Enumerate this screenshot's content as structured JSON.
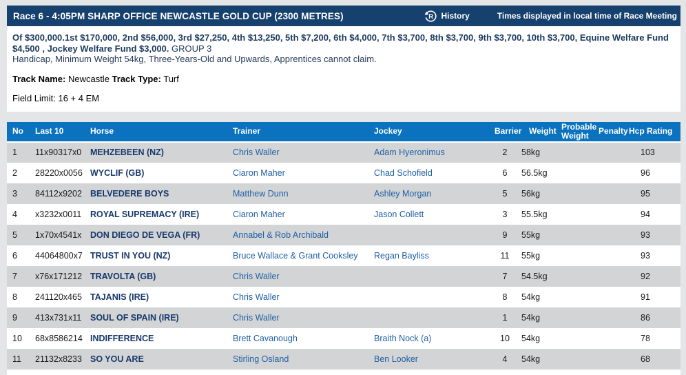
{
  "header": {
    "title": "Race 6 - 4:05PM SHARP OFFICE NEWCASTLE GOLD CUP (2300 METRES)",
    "history_label": "History",
    "history_icon": "history-refresh-R-icon",
    "times_note": "Times displayed in local time of Race Meeting"
  },
  "race_info": {
    "prize_text": "Of $300,000.1st $170,000, 2nd $56,000, 3rd $27,250, 4th $13,250, 5th $7,200, 6th $4,000, 7th $3,700, 8th $3,700, 9th $3,700, 10th $3,700, Equine Welfare Fund $4,500 , Jockey Welfare Fund $3,000.",
    "group_label": "GROUP 3",
    "conditions": "Handicap, Minimum Weight 54kg, Three-Years-Old and Upwards, Apprentices cannot claim.",
    "track_name_label": "Track Name:",
    "track_name": "Newcastle",
    "track_type_label": "Track Type:",
    "track_type": "Turf",
    "field_limit_label": "Field Limit:",
    "field_limit_value": "16 + 4 EM"
  },
  "colors": {
    "title_bar_navy": "#16406e",
    "table_header_blue": "#0a72be",
    "row_alt_gray": "#d2d4d5",
    "horse_link_navy": "#17386b",
    "person_link_blue": "#2060a5"
  },
  "table": {
    "headers": [
      "No",
      "Last 10",
      "Horse",
      "Trainer",
      "Jockey",
      "Barrier",
      "Weight",
      "Probable Weight",
      "Penalty",
      "Hcp Rating"
    ],
    "rows": [
      {
        "no": "1",
        "last10": "11x90317x0",
        "horse": "MEHZEBEEN (NZ)",
        "trainer": "Chris Waller",
        "jockey": "Adam Hyeronimus",
        "barrier": "2",
        "weight": "58kg",
        "probable_weight": "",
        "penalty": "",
        "hcp_rating": "103"
      },
      {
        "no": "2",
        "last10": "28220x0056",
        "horse": "WYCLIF (GB)",
        "trainer": "Ciaron Maher",
        "jockey": "Chad Schofield",
        "barrier": "6",
        "weight": "56.5kg",
        "probable_weight": "",
        "penalty": "",
        "hcp_rating": "96"
      },
      {
        "no": "3",
        "last10": "84112x9202",
        "horse": "BELVEDERE BOYS",
        "trainer": "Matthew Dunn",
        "jockey": "Ashley Morgan",
        "barrier": "5",
        "weight": "56kg",
        "probable_weight": "",
        "penalty": "",
        "hcp_rating": "95"
      },
      {
        "no": "4",
        "last10": "x3232x0011",
        "horse": "ROYAL SUPREMACY (IRE)",
        "trainer": "Ciaron Maher",
        "jockey": "Jason Collett",
        "barrier": "3",
        "weight": "55.5kg",
        "probable_weight": "",
        "penalty": "",
        "hcp_rating": "94"
      },
      {
        "no": "5",
        "last10": "1x70x4541x",
        "horse": "DON DIEGO DE VEGA (FR)",
        "trainer": "Annabel & Rob Archibald",
        "jockey": "",
        "barrier": "9",
        "weight": "55kg",
        "probable_weight": "",
        "penalty": "",
        "hcp_rating": "93"
      },
      {
        "no": "6",
        "last10": "44064800x7",
        "horse": "TRUST IN YOU (NZ)",
        "trainer": "Bruce Wallace & Grant Cooksley",
        "jockey": "Regan Bayliss",
        "barrier": "11",
        "weight": "55kg",
        "probable_weight": "",
        "penalty": "",
        "hcp_rating": "93"
      },
      {
        "no": "7",
        "last10": "x76x171212",
        "horse": "TRAVOLTA (GB)",
        "trainer": "Chris Waller",
        "jockey": "",
        "barrier": "7",
        "weight": "54.5kg",
        "probable_weight": "",
        "penalty": "",
        "hcp_rating": "92"
      },
      {
        "no": "8",
        "last10": "241120x465",
        "horse": "TAJANIS (IRE)",
        "trainer": "Chris Waller",
        "jockey": "",
        "barrier": "8",
        "weight": "54kg",
        "probable_weight": "",
        "penalty": "",
        "hcp_rating": "91"
      },
      {
        "no": "9",
        "last10": "413x731x11",
        "horse": "SOUL OF SPAIN (IRE)",
        "trainer": "Chris Waller",
        "jockey": "",
        "barrier": "1",
        "weight": "54kg",
        "probable_weight": "",
        "penalty": "",
        "hcp_rating": "86"
      },
      {
        "no": "10",
        "last10": "68x8586214",
        "horse": "INDIFFERENCE",
        "trainer": "Brett Cavanough",
        "jockey": "Braith Nock (a)",
        "barrier": "10",
        "weight": "54kg",
        "probable_weight": "",
        "penalty": "",
        "hcp_rating": "78"
      },
      {
        "no": "11",
        "last10": "21132x8233",
        "horse": "SO YOU ARE",
        "trainer": "Stirling Osland",
        "jockey": "Ben Looker",
        "barrier": "4",
        "weight": "54kg",
        "probable_weight": "",
        "penalty": "",
        "hcp_rating": "68"
      }
    ]
  }
}
